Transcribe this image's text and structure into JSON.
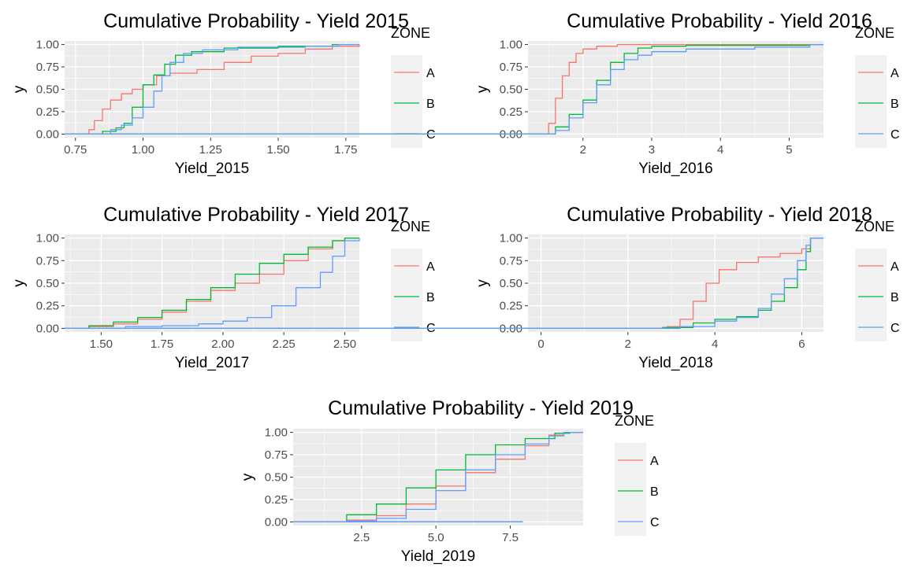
{
  "colors": {
    "A": "#F8766D",
    "B": "#00BA38",
    "C": "#619CFF",
    "panel_bg": "#EBEBEB",
    "grid": "#FFFFFF"
  },
  "chart_data": [
    {
      "type": "line",
      "title": "Cumulative Probability - Yield 2015",
      "xlabel": "Yield_2015",
      "ylabel": "y",
      "xlim": [
        0.71,
        1.8
      ],
      "ylim": [
        -0.04,
        1.04
      ],
      "x_ticks": [
        0.75,
        1.0,
        1.25,
        1.5,
        1.75
      ],
      "x_tick_labels": [
        "0.75",
        "1.00",
        "1.25",
        "1.50",
        "1.75"
      ],
      "y_ticks": [
        0,
        0.25,
        0.5,
        0.75,
        1
      ],
      "y_tick_labels": [
        "0.00",
        "0.25",
        "0.50",
        "0.75",
        "1.00"
      ],
      "legend": {
        "title": "ZONE",
        "position": "right"
      },
      "series": [
        {
          "name": "A",
          "x": [
            0.71,
            0.78,
            0.8,
            0.82,
            0.85,
            0.88,
            0.92,
            0.96,
            1.0,
            1.05,
            1.1,
            1.2,
            1.3,
            1.4,
            1.5,
            1.6,
            1.7,
            1.8
          ],
          "y": [
            0,
            0,
            0.05,
            0.15,
            0.28,
            0.38,
            0.45,
            0.5,
            0.55,
            0.65,
            0.68,
            0.72,
            0.8,
            0.87,
            0.9,
            0.95,
            0.98,
            1.0
          ]
        },
        {
          "name": "B",
          "x": [
            0.71,
            0.8,
            0.85,
            0.9,
            0.93,
            0.96,
            1.0,
            1.04,
            1.08,
            1.12,
            1.18,
            1.3,
            1.5,
            1.7,
            1.8
          ],
          "y": [
            0,
            0,
            0.03,
            0.07,
            0.12,
            0.3,
            0.55,
            0.66,
            0.78,
            0.88,
            0.92,
            0.96,
            0.98,
            1.0,
            1.0
          ]
        },
        {
          "name": "C",
          "x": [
            0.71,
            0.82,
            0.88,
            0.92,
            0.96,
            1.0,
            1.04,
            1.07,
            1.1,
            1.15,
            1.22,
            1.35,
            1.6,
            1.72,
            1.8
          ],
          "y": [
            0,
            0,
            0.05,
            0.1,
            0.18,
            0.3,
            0.48,
            0.65,
            0.8,
            0.9,
            0.94,
            0.97,
            0.98,
            1.0,
            1.0
          ]
        }
      ]
    },
    {
      "type": "line",
      "title": "Cumulative Probability - Yield 2016",
      "xlabel": "Yield_2016",
      "ylabel": "y",
      "xlim": [
        1.2,
        5.5
      ],
      "ylim": [
        -0.04,
        1.04
      ],
      "x_ticks": [
        2,
        3,
        4,
        5
      ],
      "x_tick_labels": [
        "2",
        "3",
        "4",
        "5"
      ],
      "y_ticks": [
        0,
        0.25,
        0.5,
        0.75,
        1
      ],
      "y_tick_labels": [
        "0.00",
        "0.25",
        "0.50",
        "0.75",
        "1.00"
      ],
      "legend": {
        "title": "ZONE",
        "position": "right"
      },
      "series": [
        {
          "name": "A",
          "x": [
            1.4,
            1.5,
            1.6,
            1.7,
            1.8,
            1.9,
            2.0,
            2.2,
            2.5,
            3.0,
            4.0,
            5.3
          ],
          "y": [
            0,
            0.12,
            0.4,
            0.65,
            0.8,
            0.9,
            0.95,
            0.98,
            1.0,
            1.0,
            1.0,
            1.0
          ]
        },
        {
          "name": "B",
          "x": [
            1.4,
            1.6,
            1.8,
            2.0,
            2.2,
            2.4,
            2.6,
            2.8,
            3.0,
            3.5,
            4.5,
            5.3
          ],
          "y": [
            0,
            0.08,
            0.22,
            0.38,
            0.6,
            0.8,
            0.9,
            0.96,
            0.98,
            0.99,
            0.99,
            1.0
          ]
        },
        {
          "name": "C",
          "x": [
            1.4,
            1.6,
            1.8,
            2.0,
            2.2,
            2.4,
            2.6,
            2.8,
            3.0,
            3.5,
            4.5,
            5.3
          ],
          "y": [
            0,
            0.04,
            0.18,
            0.35,
            0.55,
            0.72,
            0.83,
            0.88,
            0.92,
            0.95,
            0.97,
            1.0
          ]
        }
      ]
    },
    {
      "type": "line",
      "title": "Cumulative Probability - Yield 2017",
      "xlabel": "Yield_2017",
      "ylabel": "y",
      "xlim": [
        1.35,
        2.56
      ],
      "ylim": [
        -0.04,
        1.04
      ],
      "x_ticks": [
        1.5,
        1.75,
        2.0,
        2.25,
        2.5
      ],
      "x_tick_labels": [
        "1.50",
        "1.75",
        "2.00",
        "2.25",
        "2.50"
      ],
      "y_ticks": [
        0,
        0.25,
        0.5,
        0.75,
        1
      ],
      "y_tick_labels": [
        "0.00",
        "0.25",
        "0.50",
        "0.75",
        "1.00"
      ],
      "legend": {
        "title": "ZONE",
        "position": "right"
      },
      "series": [
        {
          "name": "A",
          "x": [
            1.35,
            1.45,
            1.55,
            1.65,
            1.75,
            1.85,
            1.95,
            2.05,
            2.15,
            2.25,
            2.35,
            2.45,
            2.5,
            2.56
          ],
          "y": [
            0,
            0.02,
            0.05,
            0.1,
            0.18,
            0.3,
            0.42,
            0.5,
            0.6,
            0.75,
            0.88,
            0.97,
            1.0,
            1.0
          ]
        },
        {
          "name": "B",
          "x": [
            1.35,
            1.45,
            1.55,
            1.65,
            1.75,
            1.85,
            1.95,
            2.05,
            2.15,
            2.25,
            2.35,
            2.45,
            2.5,
            2.56
          ],
          "y": [
            0,
            0.03,
            0.07,
            0.12,
            0.2,
            0.32,
            0.45,
            0.6,
            0.72,
            0.82,
            0.9,
            0.97,
            1.0,
            1.0
          ]
        },
        {
          "name": "C",
          "x": [
            1.35,
            1.6,
            1.75,
            1.9,
            2.0,
            2.1,
            2.2,
            2.3,
            2.4,
            2.45,
            2.5,
            2.56
          ],
          "y": [
            0,
            0.02,
            0.03,
            0.05,
            0.08,
            0.12,
            0.25,
            0.45,
            0.62,
            0.8,
            0.97,
            1.0
          ]
        }
      ]
    },
    {
      "type": "line",
      "title": "Cumulative Probability - Yield 2018",
      "xlabel": "Yield_2018",
      "ylabel": "y",
      "xlim": [
        -0.3,
        6.5
      ],
      "ylim": [
        -0.04,
        1.04
      ],
      "x_ticks": [
        0,
        2,
        4,
        6
      ],
      "x_tick_labels": [
        "0",
        "2",
        "4",
        "6"
      ],
      "y_ticks": [
        0,
        0.25,
        0.5,
        0.75,
        1
      ],
      "y_tick_labels": [
        "0.00",
        "0.25",
        "0.50",
        "0.75",
        "1.00"
      ],
      "legend": {
        "title": "ZONE",
        "position": "right"
      },
      "series": [
        {
          "name": "A",
          "x": [
            2.5,
            2.9,
            3.2,
            3.5,
            3.8,
            4.1,
            4.5,
            5.0,
            5.5,
            6.0,
            6.2,
            6.5
          ],
          "y": [
            0,
            0.02,
            0.1,
            0.3,
            0.5,
            0.65,
            0.73,
            0.79,
            0.83,
            0.88,
            1.0,
            1.0
          ]
        },
        {
          "name": "B",
          "x": [
            0.5,
            2.8,
            3.5,
            4.0,
            4.5,
            5.0,
            5.3,
            5.6,
            5.9,
            6.1,
            6.2,
            6.5
          ],
          "y": [
            0,
            0.01,
            0.06,
            0.1,
            0.13,
            0.2,
            0.3,
            0.45,
            0.65,
            0.85,
            1.0,
            1.0
          ]
        },
        {
          "name": "C",
          "x": [
            2.5,
            3.2,
            4.0,
            4.5,
            5.0,
            5.3,
            5.6,
            5.9,
            6.1,
            6.2,
            6.5
          ],
          "y": [
            0,
            0.02,
            0.08,
            0.12,
            0.22,
            0.38,
            0.55,
            0.75,
            0.92,
            1.0,
            1.0
          ]
        }
      ]
    },
    {
      "type": "line",
      "title": "Cumulative Probability - Yield 2019",
      "xlabel": "Yield_2019",
      "ylabel": "y",
      "xlim": [
        0.2,
        9.95
      ],
      "ylim": [
        -0.04,
        1.04
      ],
      "x_ticks": [
        2.5,
        5.0,
        7.5
      ],
      "x_tick_labels": [
        "2.5",
        "5.0",
        "7.5"
      ],
      "y_ticks": [
        0,
        0.25,
        0.5,
        0.75,
        1
      ],
      "y_tick_labels": [
        "0.00",
        "0.25",
        "0.50",
        "0.75",
        "1.00"
      ],
      "legend": {
        "title": "ZONE",
        "position": "right"
      },
      "series": [
        {
          "name": "A",
          "x": [
            1.0,
            2.0,
            3.0,
            4.0,
            5.0,
            6.0,
            7.0,
            8.0,
            8.8,
            9.3,
            9.95
          ],
          "y": [
            0,
            0.02,
            0.07,
            0.2,
            0.4,
            0.55,
            0.7,
            0.85,
            0.97,
            1.0,
            1.0
          ]
        },
        {
          "name": "B",
          "x": [
            1.0,
            2.0,
            3.0,
            4.0,
            5.0,
            6.0,
            7.0,
            8.0,
            9.0,
            9.5,
            9.95
          ],
          "y": [
            0,
            0.08,
            0.2,
            0.38,
            0.58,
            0.75,
            0.86,
            0.93,
            0.99,
            1.0,
            1.0
          ]
        },
        {
          "name": "C",
          "x": [
            1.0,
            2.0,
            3.0,
            4.0,
            5.0,
            6.0,
            7.0,
            8.0,
            8.8,
            9.3,
            9.95
          ],
          "y": [
            0,
            0.01,
            0.04,
            0.14,
            0.35,
            0.58,
            0.75,
            0.87,
            0.96,
            1.0,
            1.0
          ]
        }
      ]
    }
  ]
}
